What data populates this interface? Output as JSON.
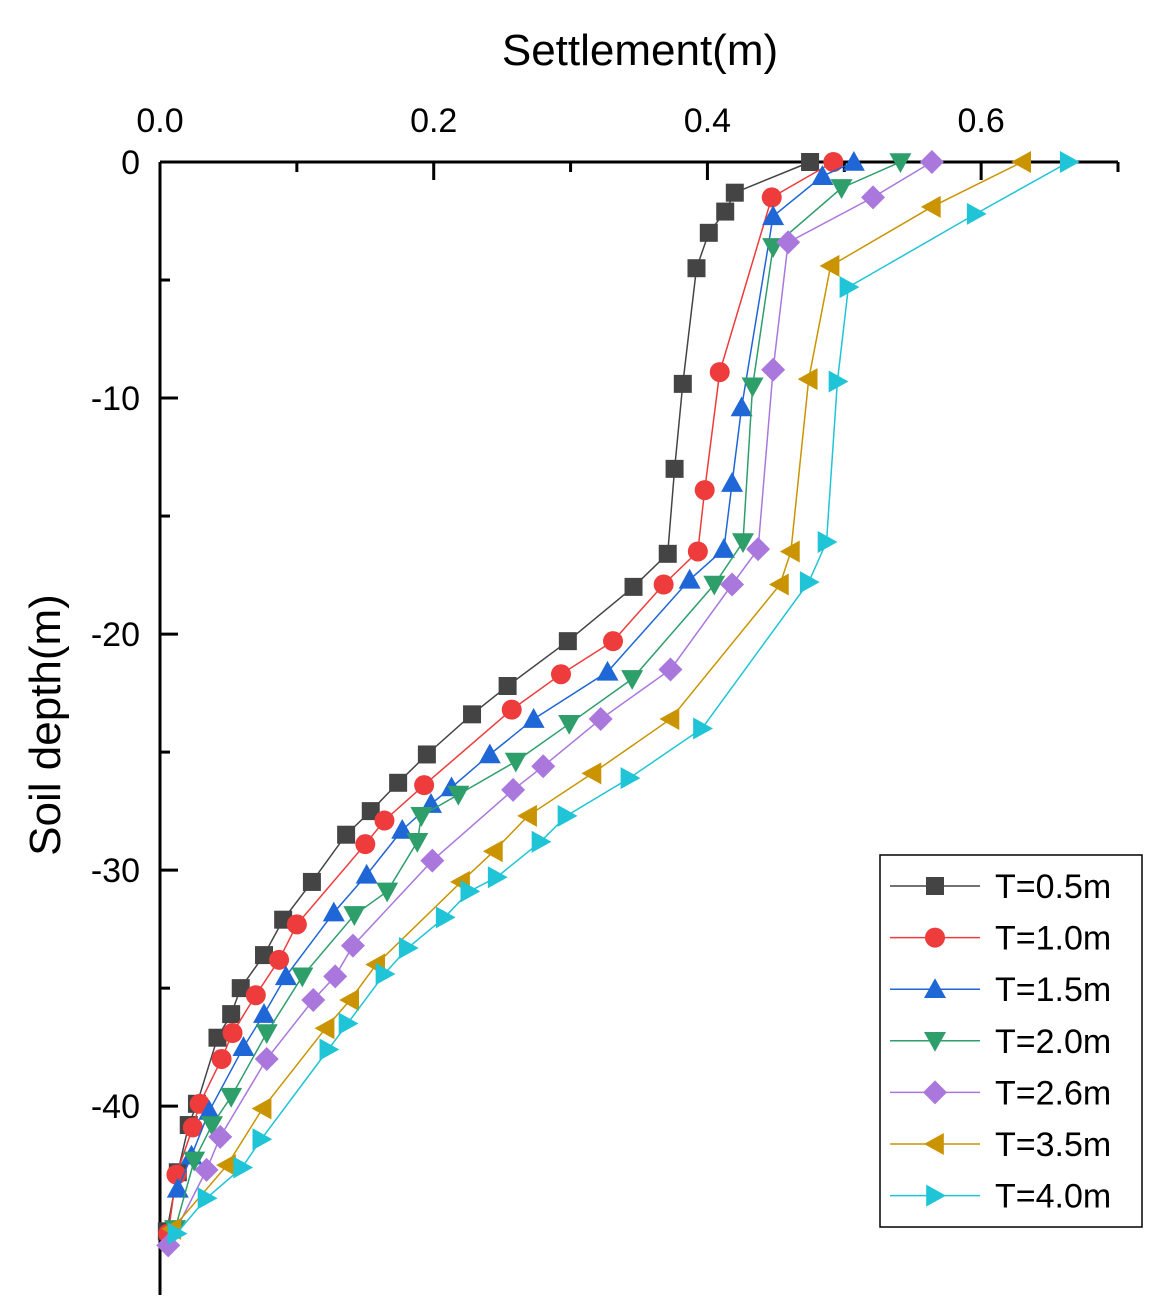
{
  "chart_data": {
    "type": "line",
    "xlabel": "Settlement(m)",
    "ylabel": "Soil depth(m)",
    "xlim": [
      0,
      0.7
    ],
    "ylim": [
      -48,
      0
    ],
    "x_ticks": [
      0.0,
      0.2,
      0.4,
      0.6
    ],
    "x_tick_labels": [
      "0.0",
      "0.2",
      "0.4",
      "0.6"
    ],
    "y_ticks": [
      0,
      -10,
      -20,
      -30,
      -40
    ],
    "y_tick_labels": [
      "0",
      "-10",
      "-20",
      "-30",
      "-40"
    ],
    "legend_position": "bottom-right",
    "series": [
      {
        "name": "T=0.5m",
        "color": "#444444",
        "marker": "square",
        "points": [
          [
            0.475,
            0
          ],
          [
            0.42,
            -1.3
          ],
          [
            0.413,
            -2.1
          ],
          [
            0.401,
            -3.0
          ],
          [
            0.392,
            -4.5
          ],
          [
            0.382,
            -9.4
          ],
          [
            0.376,
            -13.0
          ],
          [
            0.371,
            -16.6
          ],
          [
            0.346,
            -18.0
          ],
          [
            0.298,
            -20.3
          ],
          [
            0.254,
            -22.2
          ],
          [
            0.228,
            -23.4
          ],
          [
            0.195,
            -25.1
          ],
          [
            0.174,
            -26.3
          ],
          [
            0.154,
            -27.5
          ],
          [
            0.136,
            -28.5
          ],
          [
            0.111,
            -30.5
          ],
          [
            0.09,
            -32.1
          ],
          [
            0.076,
            -33.6
          ],
          [
            0.059,
            -35.0
          ],
          [
            0.052,
            -36.1
          ],
          [
            0.042,
            -37.1
          ],
          [
            0.027,
            -39.9
          ],
          [
            0.021,
            -40.8
          ],
          [
            0.013,
            -42.8
          ],
          [
            0.005,
            -45.3
          ]
        ]
      },
      {
        "name": "T=1.0m",
        "color": "#ee3b3b",
        "marker": "circle",
        "points": [
          [
            0.492,
            0
          ],
          [
            0.447,
            -1.5
          ],
          [
            0.409,
            -8.9
          ],
          [
            0.398,
            -13.9
          ],
          [
            0.393,
            -16.5
          ],
          [
            0.368,
            -17.9
          ],
          [
            0.331,
            -20.3
          ],
          [
            0.293,
            -21.7
          ],
          [
            0.257,
            -23.2
          ],
          [
            0.193,
            -26.4
          ],
          [
            0.164,
            -27.9
          ],
          [
            0.15,
            -28.9
          ],
          [
            0.1,
            -32.3
          ],
          [
            0.087,
            -33.8
          ],
          [
            0.07,
            -35.3
          ],
          [
            0.053,
            -36.9
          ],
          [
            0.045,
            -38.0
          ],
          [
            0.029,
            -39.9
          ],
          [
            0.024,
            -40.9
          ],
          [
            0.012,
            -42.9
          ],
          [
            0.006,
            -45.4
          ]
        ]
      },
      {
        "name": "T=1.5m",
        "color": "#1f66d6",
        "marker": "triangle-up",
        "points": [
          [
            0.507,
            0
          ],
          [
            0.484,
            -0.6
          ],
          [
            0.448,
            -2.3
          ],
          [
            0.425,
            -10.4
          ],
          [
            0.418,
            -13.6
          ],
          [
            0.412,
            -16.4
          ],
          [
            0.387,
            -17.7
          ],
          [
            0.327,
            -21.6
          ],
          [
            0.273,
            -23.6
          ],
          [
            0.241,
            -25.1
          ],
          [
            0.213,
            -26.5
          ],
          [
            0.198,
            -27.2
          ],
          [
            0.177,
            -28.3
          ],
          [
            0.151,
            -30.2
          ],
          [
            0.127,
            -31.8
          ],
          [
            0.092,
            -34.5
          ],
          [
            0.076,
            -36.1
          ],
          [
            0.061,
            -37.5
          ],
          [
            0.036,
            -40.2
          ],
          [
            0.023,
            -42.1
          ],
          [
            0.013,
            -43.5
          ]
        ]
      },
      {
        "name": "T=2.0m",
        "color": "#2e9e6b",
        "marker": "triangle-down",
        "points": [
          [
            0.541,
            0
          ],
          [
            0.498,
            -1.1
          ],
          [
            0.448,
            -3.6
          ],
          [
            0.433,
            -9.5
          ],
          [
            0.426,
            -16.1
          ],
          [
            0.405,
            -17.9
          ],
          [
            0.345,
            -21.9
          ],
          [
            0.299,
            -23.8
          ],
          [
            0.26,
            -25.4
          ],
          [
            0.218,
            -26.8
          ],
          [
            0.191,
            -27.7
          ],
          [
            0.188,
            -28.8
          ],
          [
            0.166,
            -30.9
          ],
          [
            0.142,
            -31.9
          ],
          [
            0.104,
            -34.5
          ],
          [
            0.078,
            -36.9
          ],
          [
            0.052,
            -39.6
          ],
          [
            0.038,
            -40.8
          ],
          [
            0.025,
            -42.3
          ],
          [
            0.011,
            -45.2
          ]
        ]
      },
      {
        "name": "T=2.6m",
        "color": "#aa77dd",
        "marker": "diamond",
        "points": [
          [
            0.564,
            0
          ],
          [
            0.521,
            -1.5
          ],
          [
            0.459,
            -3.4
          ],
          [
            0.448,
            -8.8
          ],
          [
            0.437,
            -16.4
          ],
          [
            0.418,
            -17.9
          ],
          [
            0.373,
            -21.5
          ],
          [
            0.322,
            -23.6
          ],
          [
            0.28,
            -25.6
          ],
          [
            0.258,
            -26.6
          ],
          [
            0.199,
            -29.6
          ],
          [
            0.141,
            -33.2
          ],
          [
            0.128,
            -34.5
          ],
          [
            0.112,
            -35.5
          ],
          [
            0.078,
            -38.0
          ],
          [
            0.044,
            -41.3
          ],
          [
            0.034,
            -42.7
          ],
          [
            0.006,
            -45.9
          ]
        ]
      },
      {
        "name": "T=3.5m",
        "color": "#c99400",
        "marker": "triangle-left",
        "points": [
          [
            0.63,
            0
          ],
          [
            0.564,
            -1.9
          ],
          [
            0.49,
            -4.4
          ],
          [
            0.474,
            -9.2
          ],
          [
            0.461,
            -16.5
          ],
          [
            0.453,
            -17.9
          ],
          [
            0.373,
            -23.6
          ],
          [
            0.316,
            -25.9
          ],
          [
            0.269,
            -27.7
          ],
          [
            0.244,
            -29.2
          ],
          [
            0.22,
            -30.5
          ],
          [
            0.158,
            -34.0
          ],
          [
            0.139,
            -35.5
          ],
          [
            0.121,
            -36.7
          ],
          [
            0.075,
            -40.1
          ],
          [
            0.049,
            -42.5
          ],
          [
            0.009,
            -45.2
          ]
        ]
      },
      {
        "name": "T=4.0m",
        "color": "#1fc4d6",
        "marker": "triangle-right",
        "points": [
          [
            0.664,
            0
          ],
          [
            0.596,
            -2.2
          ],
          [
            0.503,
            -5.3
          ],
          [
            0.495,
            -9.3
          ],
          [
            0.487,
            -16.1
          ],
          [
            0.474,
            -17.8
          ],
          [
            0.396,
            -24.0
          ],
          [
            0.343,
            -26.1
          ],
          [
            0.297,
            -27.7
          ],
          [
            0.278,
            -28.8
          ],
          [
            0.246,
            -30.3
          ],
          [
            0.226,
            -30.9
          ],
          [
            0.208,
            -32.0
          ],
          [
            0.181,
            -33.3
          ],
          [
            0.164,
            -34.4
          ],
          [
            0.137,
            -36.5
          ],
          [
            0.123,
            -37.6
          ],
          [
            0.074,
            -41.4
          ],
          [
            0.06,
            -42.6
          ],
          [
            0.034,
            -43.9
          ],
          [
            0.012,
            -45.4
          ]
        ]
      }
    ]
  }
}
